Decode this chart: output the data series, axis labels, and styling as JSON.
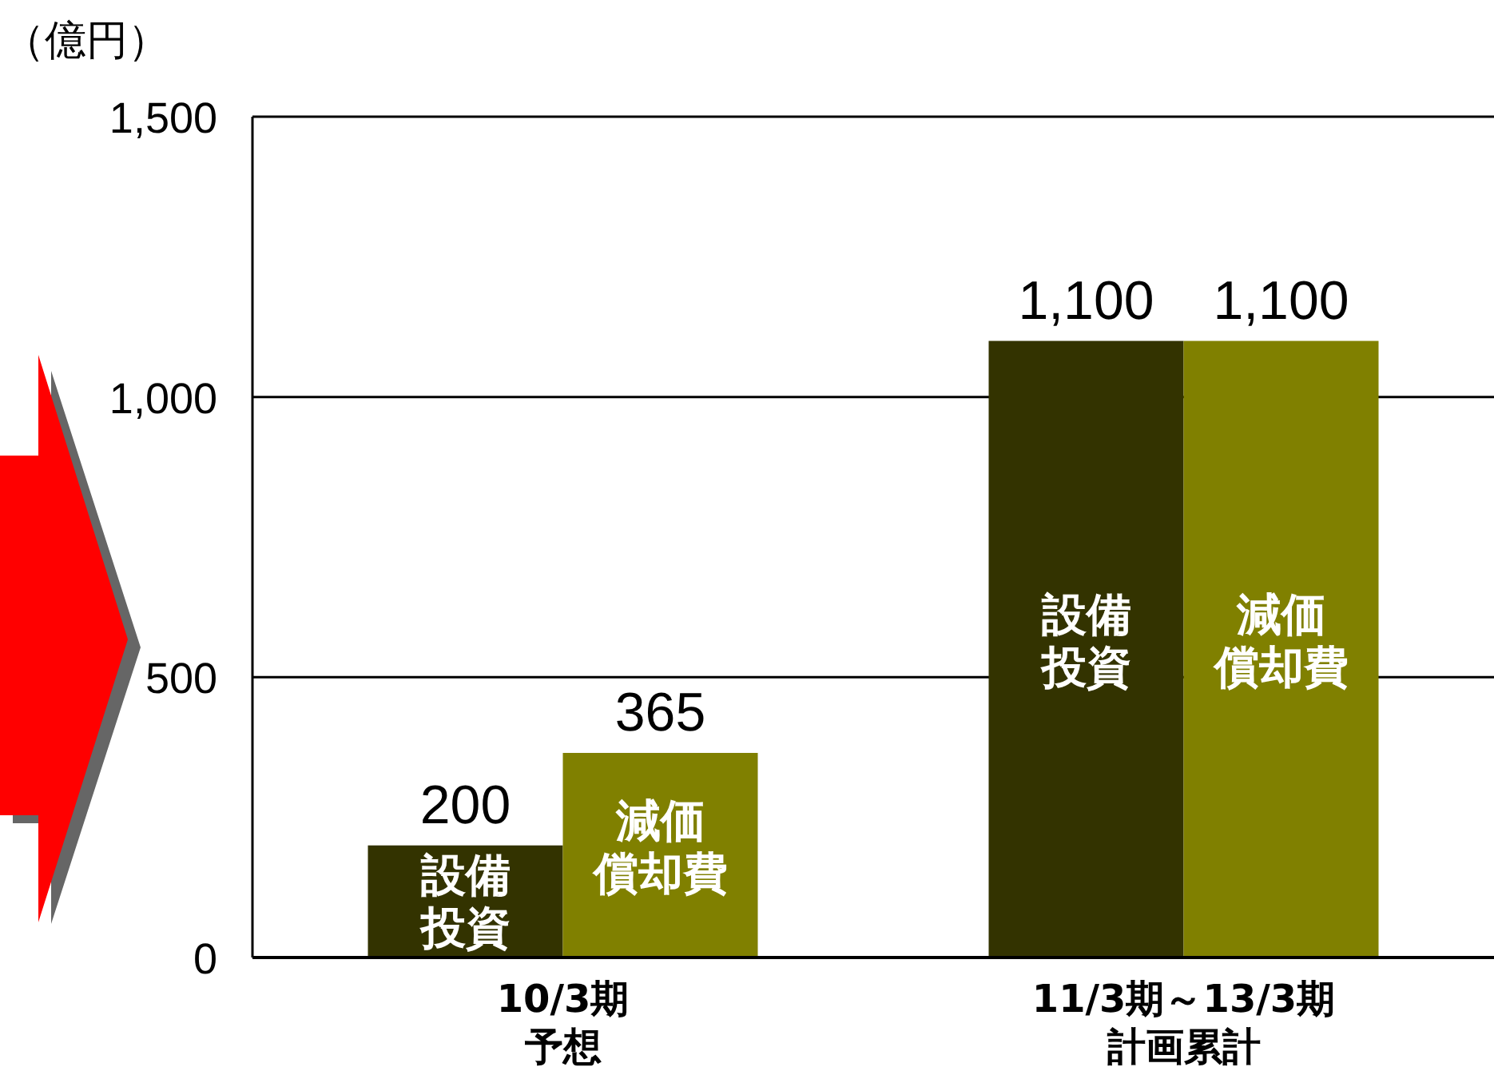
{
  "chart_data": {
    "type": "bar",
    "ylabel": "（億円）",
    "categories": [
      "10/3期予想",
      "11/3期～13/3期計画累計"
    ],
    "series": [
      {
        "name": "設備投資",
        "color": "#333300",
        "values": [
          200,
          1100
        ],
        "value_labels": [
          "200",
          "1,100"
        ]
      },
      {
        "name": "減価償却費",
        "color": "#808000",
        "values": [
          365,
          1100
        ],
        "value_labels": [
          "365",
          "1,100"
        ]
      }
    ],
    "ylim": [
      0,
      1500
    ],
    "yticks": [
      0,
      {
        "value": 500,
        "label": "500"
      },
      {
        "value": 1000,
        "label": "1,000"
      },
      {
        "value": 1500,
        "label": "1,500"
      }
    ],
    "grid": "y"
  }
}
